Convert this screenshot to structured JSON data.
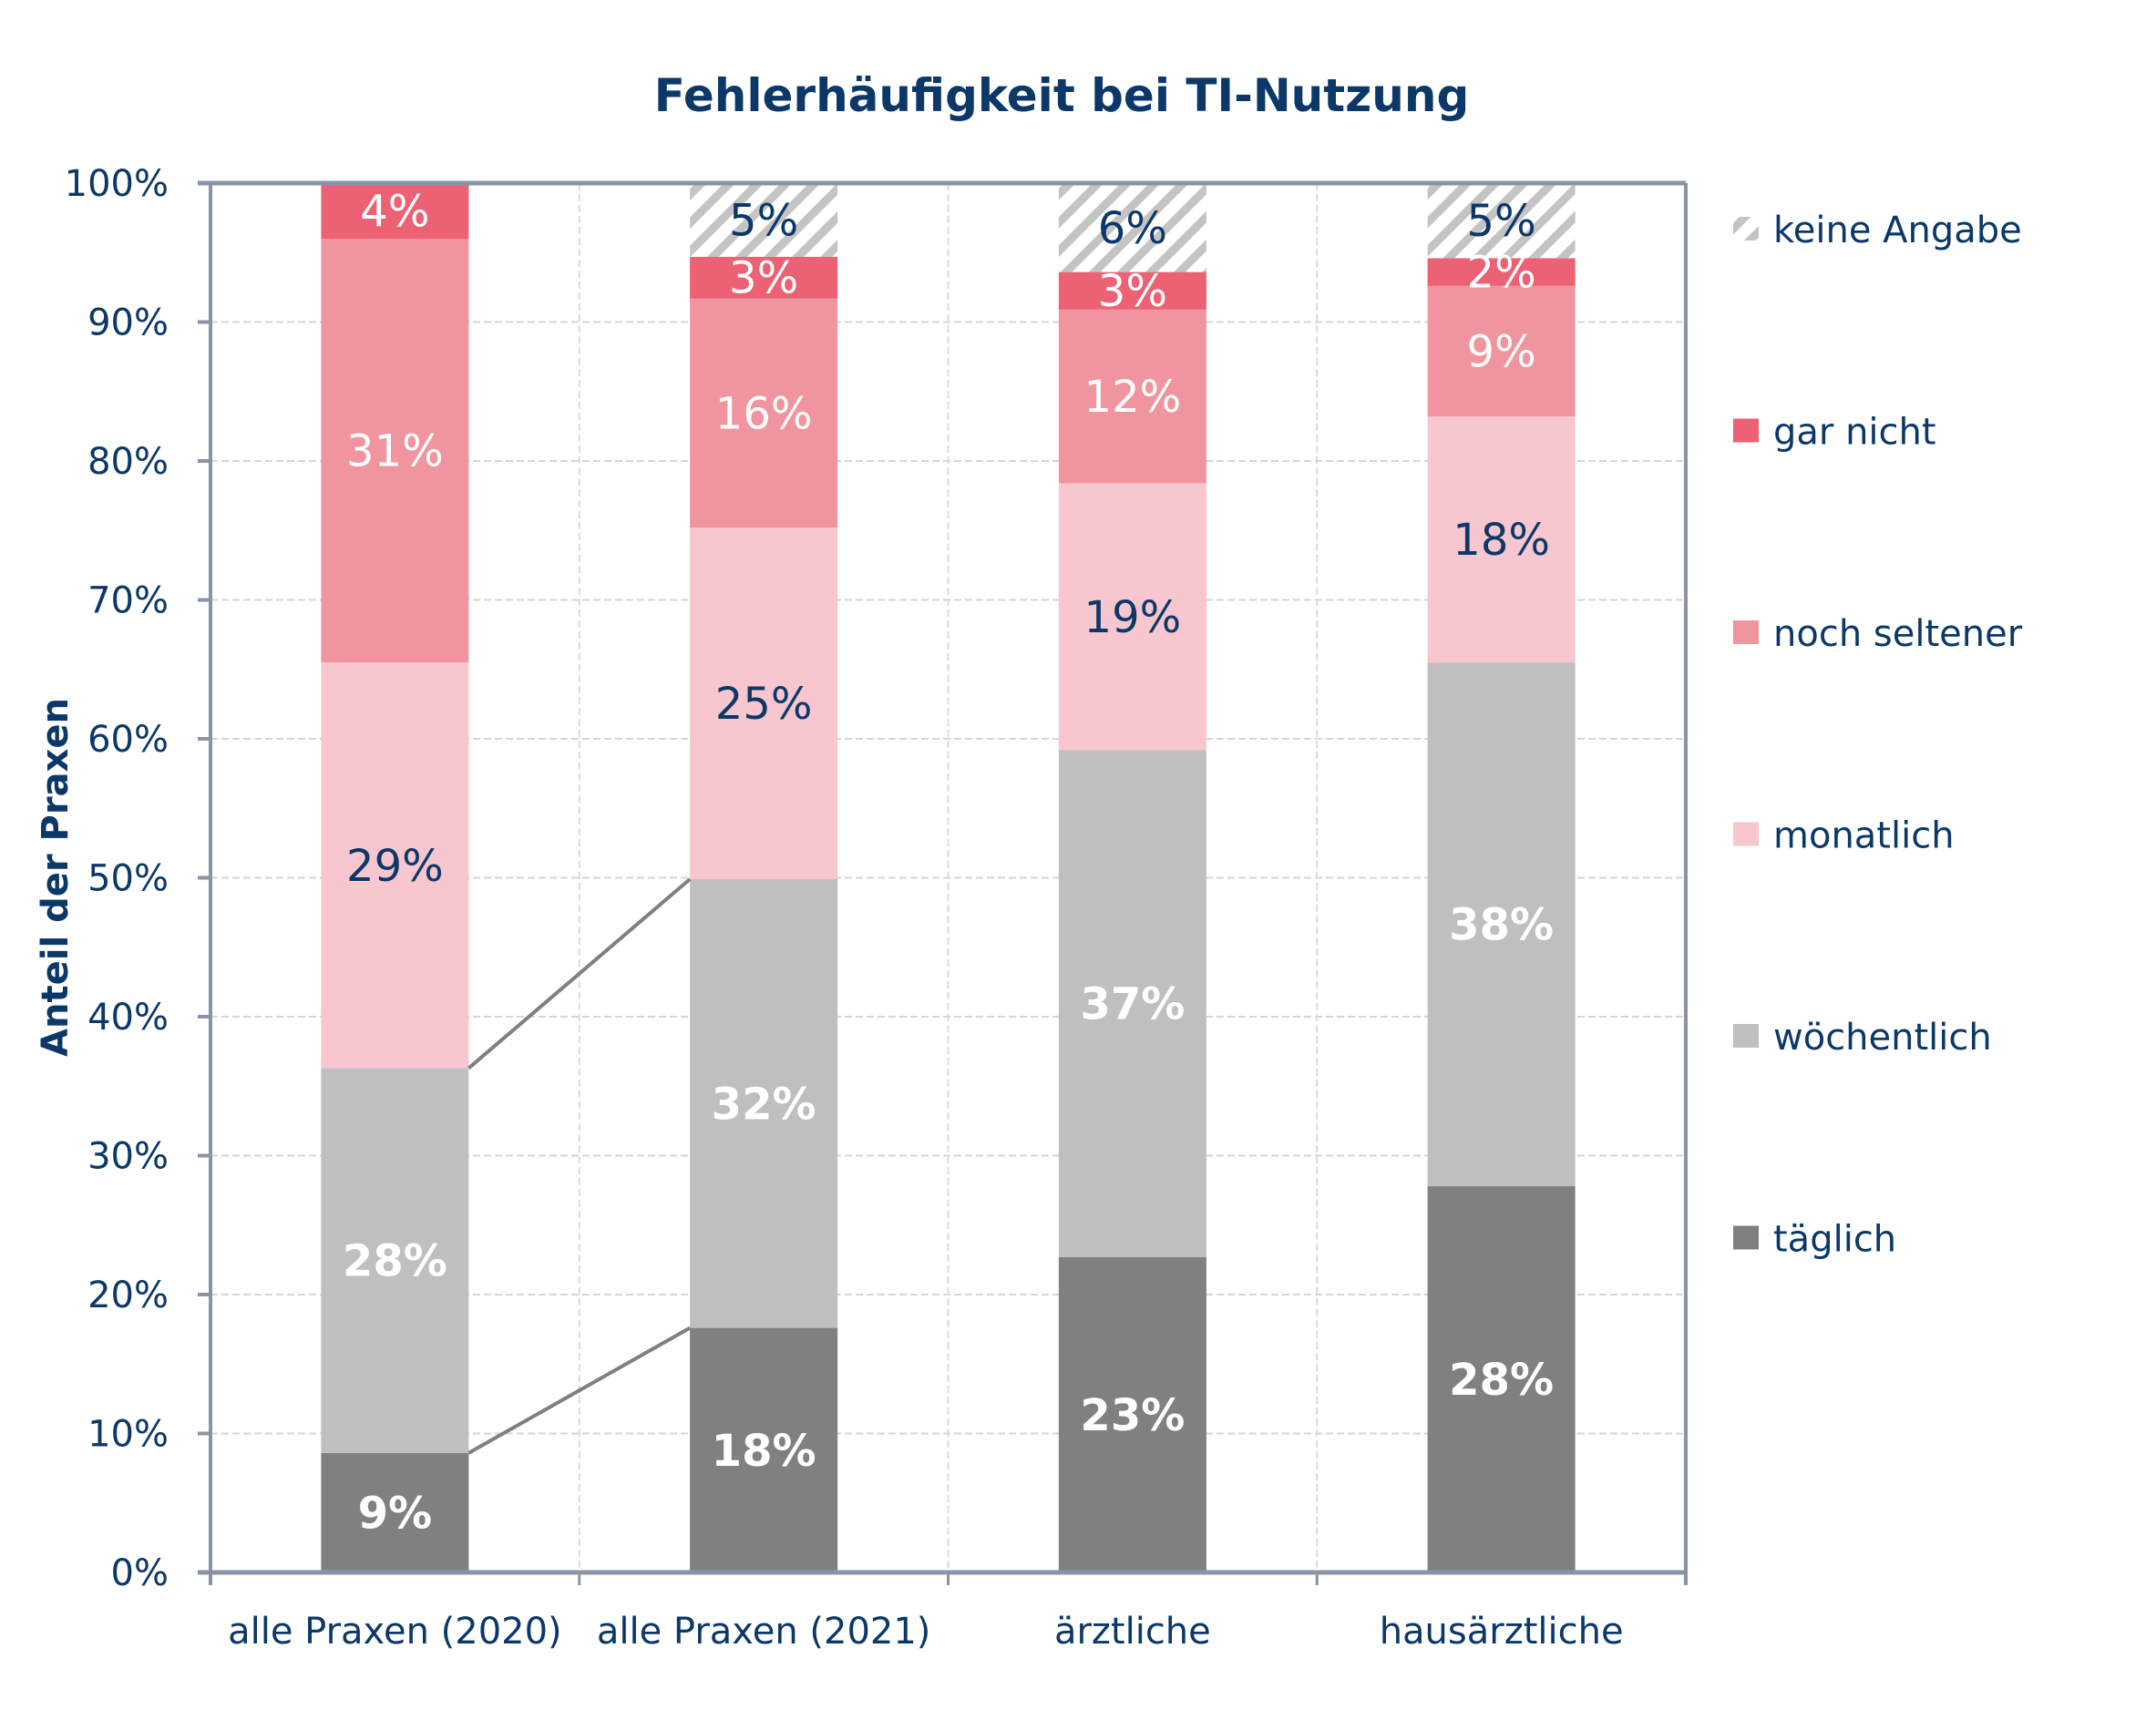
{
  "chart_data": {
    "type": "bar",
    "stacked": true,
    "title": "Fehlerhäufigkeit bei TI-Nutzung",
    "xlabel": "",
    "ylabel": "Anteil der Praxen",
    "ylim": [
      0,
      100
    ],
    "yticks": [
      "0%",
      "10%",
      "20%",
      "30%",
      "40%",
      "50%",
      "60%",
      "70%",
      "80%",
      "90%",
      "100%"
    ],
    "grid": true,
    "legend_position": "right",
    "categories": [
      "alle Praxen (2020)",
      "alle Praxen (2021)",
      "ärztliche",
      "hausärztliche"
    ],
    "series": [
      {
        "name": "täglich",
        "color": "#808080",
        "label_color": "#ffffff",
        "label_bold": true,
        "values": [
          8.6,
          17.6,
          22.7,
          27.8
        ],
        "labels": [
          "9%",
          "18%",
          "23%",
          "28%"
        ]
      },
      {
        "name": "wöchentlich",
        "color": "#bfbfbf",
        "label_color": "#ffffff",
        "label_bold": true,
        "values": [
          27.7,
          32.3,
          36.5,
          37.7
        ],
        "labels": [
          "28%",
          "32%",
          "37%",
          "38%"
        ]
      },
      {
        "name": "monatlich",
        "color": "#f7c6ce",
        "label_color": "#0b3868",
        "label_bold": false,
        "values": [
          29.2,
          25.3,
          19.2,
          17.7
        ],
        "labels": [
          "29%",
          "25%",
          "19%",
          "18%"
        ]
      },
      {
        "name": "noch seltener",
        "color": "#f0959f",
        "label_color": "#ffffff",
        "label_bold": false,
        "values": [
          30.5,
          16.5,
          12.5,
          9.4
        ],
        "labels": [
          "31%",
          "16%",
          "12%",
          "9%"
        ]
      },
      {
        "name": "gar nicht",
        "color": "#ec6173",
        "label_color": "#ffffff",
        "label_bold": false,
        "values": [
          4.0,
          3.0,
          2.7,
          2.0
        ],
        "labels": [
          "4%",
          "3%",
          "3%",
          "2%"
        ]
      },
      {
        "name": "keine Angabe",
        "color": "hatch",
        "label_color": "#0b3868",
        "label_bold": false,
        "values": [
          0,
          5.3,
          6.4,
          5.4
        ],
        "labels": [
          "",
          "5%",
          "6%",
          "5%"
        ]
      }
    ],
    "legend_order": [
      "keine Angabe",
      "gar nicht",
      "noch seltener",
      "monatlich",
      "wöchentlich",
      "täglich"
    ],
    "connector_lines": [
      {
        "from_category": 0,
        "to_category": 1,
        "at_top_of_series": "wöchentlich"
      },
      {
        "from_category": 0,
        "to_category": 1,
        "at_top_of_series": "täglich"
      }
    ]
  }
}
